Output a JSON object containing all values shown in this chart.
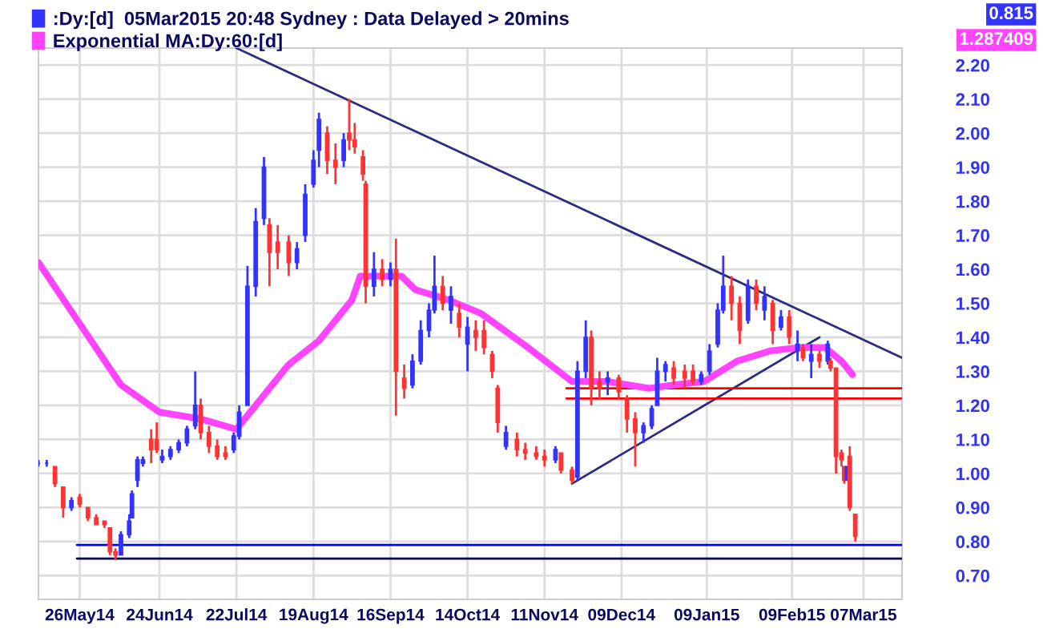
{
  "chart_data": {
    "type": "candlestick",
    "series": [
      {
        "type": "candlestick",
        "name": ":Dy:[d]  05Mar2015 20:48 Sydney : Data Delayed > 20mins",
        "color": "#3333ff",
        "x": [
          "2014-05-11",
          "2014-05-14",
          "2014-05-17",
          "2014-05-20",
          "2014-05-23",
          "2014-05-26",
          "2014-05-29",
          "2014-06-01",
          "2014-06-04",
          "2014-06-06",
          "2014-06-08",
          "2014-06-10",
          "2014-06-13",
          "2014-06-14",
          "2014-06-16",
          "2014-06-18",
          "2014-06-21",
          "2014-06-23",
          "2014-06-25",
          "2014-06-28",
          "2014-07-01",
          "2014-07-04",
          "2014-07-07",
          "2014-07-09",
          "2014-07-12",
          "2014-07-15",
          "2014-07-18",
          "2014-07-21",
          "2014-07-23",
          "2014-07-26",
          "2014-07-29",
          "2014-08-01",
          "2014-08-03",
          "2014-08-06",
          "2014-08-10",
          "2014-08-13",
          "2014-08-16",
          "2014-08-19",
          "2014-08-21",
          "2014-08-24",
          "2014-08-27",
          "2014-08-30",
          "2014-09-01",
          "2014-09-03",
          "2014-09-06",
          "2014-09-07",
          "2014-09-10",
          "2014-09-13",
          "2014-09-16",
          "2014-09-18",
          "2014-09-21",
          "2014-09-24",
          "2014-09-27",
          "2014-09-30",
          "2014-10-02",
          "2014-10-05",
          "2014-10-08",
          "2014-10-11",
          "2014-10-14",
          "2014-10-17",
          "2014-10-20",
          "2014-10-23",
          "2014-10-25",
          "2014-10-28",
          "2014-11-01",
          "2014-11-04",
          "2014-11-08",
          "2014-11-11",
          "2014-11-15",
          "2014-11-17",
          "2014-11-21",
          "2014-11-23",
          "2014-11-26",
          "2014-11-28",
          "2014-12-01",
          "2014-12-04",
          "2014-12-08",
          "2014-12-11",
          "2014-12-14",
          "2014-12-17",
          "2014-12-20",
          "2014-12-22",
          "2014-12-25",
          "2014-12-28",
          "2015-01-01",
          "2015-01-04",
          "2015-01-07",
          "2015-01-10",
          "2015-01-13",
          "2015-01-15",
          "2015-01-18",
          "2015-01-21",
          "2015-01-24",
          "2015-01-27",
          "2015-01-30",
          "2015-02-02",
          "2015-02-05",
          "2015-02-08",
          "2015-02-11",
          "2015-02-13",
          "2015-02-16",
          "2015-02-19",
          "2015-02-22",
          "2015-02-23",
          "2015-02-25",
          "2015-02-27",
          "2015-02-28",
          "2015-03-01",
          "2015-03-02",
          "2015-03-04"
        ],
        "ohlc": [
          [
            1.03,
            1.04,
            1.02,
            1.03
          ],
          [
            1.03,
            1.04,
            1.02,
            1.03
          ],
          [
            1.02,
            1.02,
            0.96,
            0.97
          ],
          [
            0.96,
            0.96,
            0.87,
            0.9
          ],
          [
            0.9,
            0.93,
            0.89,
            0.92
          ],
          [
            0.93,
            0.94,
            0.9,
            0.91
          ],
          [
            0.9,
            0.9,
            0.86,
            0.87
          ],
          [
            0.87,
            0.88,
            0.85,
            0.85
          ],
          [
            0.86,
            0.86,
            0.84,
            0.85
          ],
          [
            0.84,
            0.84,
            0.76,
            0.77
          ],
          [
            0.77,
            0.78,
            0.745,
            0.76
          ],
          [
            0.76,
            0.83,
            0.76,
            0.82
          ],
          [
            0.82,
            0.88,
            0.81,
            0.86
          ],
          [
            0.87,
            0.95,
            0.87,
            0.94
          ],
          [
            0.98,
            1.05,
            0.96,
            1.04
          ],
          [
            1.03,
            1.05,
            1.02,
            1.04
          ],
          [
            1.1,
            1.13,
            1.03,
            1.07
          ],
          [
            1.1,
            1.15,
            1.06,
            1.07
          ],
          [
            1.04,
            1.07,
            1.03,
            1.05
          ],
          [
            1.05,
            1.08,
            1.04,
            1.07
          ],
          [
            1.07,
            1.1,
            1.06,
            1.09
          ],
          [
            1.09,
            1.14,
            1.08,
            1.13
          ],
          [
            1.14,
            1.3,
            1.13,
            1.2
          ],
          [
            1.2,
            1.22,
            1.1,
            1.12
          ],
          [
            1.12,
            1.14,
            1.06,
            1.08
          ],
          [
            1.08,
            1.1,
            1.04,
            1.05
          ],
          [
            1.06,
            1.08,
            1.04,
            1.05
          ],
          [
            1.07,
            1.12,
            1.06,
            1.11
          ],
          [
            1.11,
            1.2,
            1.1,
            1.18
          ],
          [
            1.2,
            1.61,
            1.2,
            1.55
          ],
          [
            1.55,
            1.78,
            1.52,
            1.74
          ],
          [
            1.75,
            1.93,
            1.73,
            1.9
          ],
          [
            1.73,
            1.75,
            1.55,
            1.65
          ],
          [
            1.68,
            1.73,
            1.6,
            1.65
          ],
          [
            1.68,
            1.7,
            1.58,
            1.62
          ],
          [
            1.62,
            1.68,
            1.6,
            1.66
          ],
          [
            1.7,
            1.85,
            1.68,
            1.82
          ],
          [
            1.85,
            1.95,
            1.84,
            1.92
          ],
          [
            1.95,
            2.06,
            1.9,
            2.04
          ],
          [
            2.0,
            2.02,
            1.88,
            1.92
          ],
          [
            1.92,
            1.97,
            1.85,
            1.9
          ],
          [
            1.92,
            2.0,
            1.9,
            1.98
          ],
          [
            2.0,
            2.1,
            1.95,
            1.98
          ],
          [
            1.98,
            2.03,
            1.94,
            1.96
          ],
          [
            1.93,
            1.95,
            1.86,
            1.88
          ],
          [
            1.85,
            1.86,
            1.5,
            1.55
          ],
          [
            1.55,
            1.65,
            1.52,
            1.6
          ],
          [
            1.6,
            1.63,
            1.55,
            1.57
          ],
          [
            1.57,
            1.62,
            1.55,
            1.6
          ],
          [
            1.6,
            1.69,
            1.17,
            1.3
          ],
          [
            1.28,
            1.32,
            1.22,
            1.25
          ],
          [
            1.26,
            1.35,
            1.25,
            1.33
          ],
          [
            1.33,
            1.45,
            1.32,
            1.42
          ],
          [
            1.42,
            1.5,
            1.4,
            1.48
          ],
          [
            1.48,
            1.64,
            1.47,
            1.55
          ],
          [
            1.55,
            1.58,
            1.48,
            1.5
          ],
          [
            1.48,
            1.55,
            1.44,
            1.52
          ],
          [
            1.47,
            1.5,
            1.4,
            1.43
          ],
          [
            1.38,
            1.46,
            1.3,
            1.43
          ],
          [
            1.42,
            1.45,
            1.36,
            1.4
          ],
          [
            1.42,
            1.45,
            1.35,
            1.37
          ],
          [
            1.35,
            1.36,
            1.28,
            1.3
          ],
          [
            1.25,
            1.26,
            1.12,
            1.15
          ],
          [
            1.08,
            1.14,
            1.07,
            1.12
          ],
          [
            1.1,
            1.12,
            1.05,
            1.07
          ],
          [
            1.07,
            1.09,
            1.04,
            1.06
          ],
          [
            1.06,
            1.08,
            1.04,
            1.05
          ],
          [
            1.05,
            1.07,
            1.02,
            1.04
          ],
          [
            1.04,
            1.08,
            1.03,
            1.07
          ],
          [
            1.06,
            1.06,
            1.0,
            1.01
          ],
          [
            1.01,
            1.02,
            0.97,
            0.98
          ],
          [
            0.99,
            1.33,
            0.98,
            1.3
          ],
          [
            1.3,
            1.45,
            1.28,
            1.4
          ],
          [
            1.4,
            1.42,
            1.2,
            1.25
          ],
          [
            1.27,
            1.3,
            1.22,
            1.25
          ],
          [
            1.27,
            1.3,
            1.23,
            1.28
          ],
          [
            1.28,
            1.29,
            1.22,
            1.24
          ],
          [
            1.22,
            1.23,
            1.12,
            1.16
          ],
          [
            1.16,
            1.18,
            1.02,
            1.12
          ],
          [
            1.12,
            1.15,
            1.09,
            1.14
          ],
          [
            1.14,
            1.2,
            1.13,
            1.19
          ],
          [
            1.2,
            1.34,
            1.2,
            1.3
          ],
          [
            1.3,
            1.33,
            1.27,
            1.32
          ],
          [
            1.31,
            1.33,
            1.26,
            1.28
          ],
          [
            1.3,
            1.32,
            1.25,
            1.28
          ],
          [
            1.3,
            1.32,
            1.26,
            1.27
          ],
          [
            1.27,
            1.3,
            1.26,
            1.29
          ],
          [
            1.3,
            1.38,
            1.29,
            1.36
          ],
          [
            1.38,
            1.5,
            1.37,
            1.48
          ],
          [
            1.48,
            1.64,
            1.47,
            1.55
          ],
          [
            1.55,
            1.58,
            1.45,
            1.5
          ],
          [
            1.5,
            1.52,
            1.38,
            1.42
          ],
          [
            1.45,
            1.57,
            1.44,
            1.55
          ],
          [
            1.55,
            1.57,
            1.48,
            1.5
          ],
          [
            1.48,
            1.55,
            1.45,
            1.52
          ],
          [
            1.5,
            1.51,
            1.38,
            1.42
          ],
          [
            1.43,
            1.48,
            1.42,
            1.46
          ],
          [
            1.46,
            1.48,
            1.38,
            1.4
          ],
          [
            1.36,
            1.42,
            1.33,
            1.38
          ],
          [
            1.37,
            1.38,
            1.33,
            1.34
          ],
          [
            1.33,
            1.38,
            1.28,
            1.35
          ],
          [
            1.35,
            1.36,
            1.31,
            1.33
          ],
          [
            1.33,
            1.39,
            1.32,
            1.38
          ],
          [
            1.33,
            1.34,
            1.3,
            1.31
          ],
          [
            1.31,
            1.31,
            1.0,
            1.05
          ],
          [
            1.06,
            1.07,
            1.02,
            1.04
          ],
          [
            1.02,
            1.02,
            0.97,
            0.98
          ],
          [
            0.98,
            1.02,
            0.98,
            1.02
          ],
          [
            1.05,
            1.08,
            0.89,
            0.9
          ],
          [
            0.88,
            0.88,
            0.8,
            0.815
          ]
        ],
        "colors": [
          "#3333ff",
          "#3333ff",
          "#ff3333",
          "#ff3333",
          "#3333ff",
          "#ff3333",
          "#ff3333",
          "#ff3333",
          "#ff3333",
          "#ff3333",
          "#ff3333",
          "#3333ff",
          "#3333ff",
          "#3333ff",
          "#3333ff",
          "#3333ff",
          "#ff3333",
          "#ff3333",
          "#3333ff",
          "#3333ff",
          "#3333ff",
          "#3333ff",
          "#3333ff",
          "#ff3333",
          "#ff3333",
          "#ff3333",
          "#ff3333",
          "#3333ff",
          "#3333ff",
          "#3333ff",
          "#3333ff",
          "#3333ff",
          "#ff3333",
          "#ff3333",
          "#ff3333",
          "#3333ff",
          "#3333ff",
          "#3333ff",
          "#3333ff",
          "#ff3333",
          "#ff3333",
          "#3333ff",
          "#ff3333",
          "#ff3333",
          "#ff3333",
          "#ff3333",
          "#3333ff",
          "#ff3333",
          "#3333ff",
          "#ff3333",
          "#ff3333",
          "#3333ff",
          "#3333ff",
          "#3333ff",
          "#3333ff",
          "#ff3333",
          "#3333ff",
          "#ff3333",
          "#3333ff",
          "#ff3333",
          "#ff3333",
          "#ff3333",
          "#ff3333",
          "#3333ff",
          "#ff3333",
          "#ff3333",
          "#ff3333",
          "#ff3333",
          "#3333ff",
          "#ff3333",
          "#ff3333",
          "#3333ff",
          "#3333ff",
          "#ff3333",
          "#ff3333",
          "#3333ff",
          "#ff3333",
          "#ff3333",
          "#ff3333",
          "#3333ff",
          "#3333ff",
          "#3333ff",
          "#3333ff",
          "#ff3333",
          "#ff3333",
          "#ff3333",
          "#3333ff",
          "#3333ff",
          "#3333ff",
          "#3333ff",
          "#ff3333",
          "#ff3333",
          "#3333ff",
          "#ff3333",
          "#3333ff",
          "#ff3333",
          "#3333ff",
          "#ff3333",
          "#3333ff",
          "#ff3333",
          "#3333ff",
          "#ff3333",
          "#3333ff",
          "#ff3333",
          "#ff3333",
          "#ff3333",
          "#ff3333",
          "#3333ff",
          "#ff3333",
          "#ff3333"
        ]
      },
      {
        "type": "line",
        "name": "Exponential MA:Dy:60:[d]",
        "color": "#ff44ff",
        "x": [
          "2014-05-11",
          "2014-05-26",
          "2014-06-10",
          "2014-06-24",
          "2014-07-09",
          "2014-07-22",
          "2014-07-29",
          "2014-08-10",
          "2014-08-21",
          "2014-09-02",
          "2014-09-05",
          "2014-09-14",
          "2014-09-20",
          "2014-09-25",
          "2014-10-07",
          "2014-10-19",
          "2014-11-05",
          "2014-11-21",
          "2014-12-04",
          "2014-12-19",
          "2014-12-28",
          "2015-01-08",
          "2015-01-20",
          "2015-02-01",
          "2015-02-12",
          "2015-02-21",
          "2015-02-27",
          "2015-03-03"
        ],
        "values": [
          1.62,
          1.44,
          1.26,
          1.18,
          1.16,
          1.13,
          1.2,
          1.32,
          1.39,
          1.51,
          1.58,
          1.58,
          1.58,
          1.54,
          1.51,
          1.47,
          1.37,
          1.27,
          1.27,
          1.25,
          1.26,
          1.27,
          1.33,
          1.36,
          1.37,
          1.37,
          1.33,
          1.29
        ]
      },
      {
        "type": "line",
        "color": "#2b2b80",
        "x": [
          "2014-07-22",
          "2015-03-21"
        ],
        "values": [
          2.25,
          1.34
        ]
      },
      {
        "type": "line",
        "color": "#2b2b80",
        "x": [
          "2014-11-21",
          "2015-02-19"
        ],
        "values": [
          0.97,
          1.4
        ]
      },
      {
        "type": "line",
        "color": "#ff0000",
        "x": [
          "2014-11-19",
          "2015-03-21"
        ],
        "values": [
          1.25,
          1.25
        ]
      },
      {
        "type": "line",
        "color": "#ff0000",
        "x": [
          "2014-11-19",
          "2015-03-21"
        ],
        "values": [
          1.22,
          1.22
        ]
      },
      {
        "type": "line",
        "color": "#0000ff",
        "x": [
          "2014-05-25",
          "2015-03-21"
        ],
        "values": [
          0.79,
          0.79
        ]
      },
      {
        "type": "line",
        "color": "#000050",
        "x": [
          "2014-05-25",
          "2015-03-21"
        ],
        "values": [
          0.75,
          0.75
        ]
      }
    ],
    "xlim": [
      "2014-05-11",
      "2015-03-21"
    ],
    "xticks": [
      {
        "value": "2014-05-26",
        "label": "26May14"
      },
      {
        "value": "2014-06-24",
        "label": "24Jun14"
      },
      {
        "value": "2014-07-22",
        "label": "22Jul14"
      },
      {
        "value": "2014-08-19",
        "label": "19Aug14"
      },
      {
        "value": "2014-09-16",
        "label": "16Sep14"
      },
      {
        "value": "2014-10-14",
        "label": "14Oct14"
      },
      {
        "value": "2014-11-11",
        "label": "11Nov14"
      },
      {
        "value": "2014-12-09",
        "label": "09Dec14"
      },
      {
        "value": "2015-01-09",
        "label": "09Jan15"
      },
      {
        "value": "2015-02-09",
        "label": "09Feb15"
      },
      {
        "value": "2015-03-07",
        "label": "07Mar15"
      }
    ],
    "ylim": [
      0.63,
      2.25
    ],
    "yticks": [
      {
        "value": 0.7,
        "label": "0.70"
      },
      {
        "value": 0.8,
        "label": "0.80"
      },
      {
        "value": 0.9,
        "label": "0.90"
      },
      {
        "value": 1.0,
        "label": "1.00"
      },
      {
        "value": 1.1,
        "label": "1.10"
      },
      {
        "value": 1.2,
        "label": "1.20"
      },
      {
        "value": 1.3,
        "label": "1.30"
      },
      {
        "value": 1.4,
        "label": "1.40"
      },
      {
        "value": 1.5,
        "label": "1.50"
      },
      {
        "value": 1.6,
        "label": "1.60"
      },
      {
        "value": 1.7,
        "label": "1.70"
      },
      {
        "value": 1.8,
        "label": "1.80"
      },
      {
        "value": 1.9,
        "label": "1.90"
      },
      {
        "value": 2.0,
        "label": "2.00"
      },
      {
        "value": 2.1,
        "label": "2.10"
      },
      {
        "value": 2.2,
        "label": "2.20"
      }
    ],
    "annotations": [
      "0.815",
      "1.287409"
    ],
    "grid": true,
    "legend": "top left",
    "marker": "none",
    "line_style": "solid"
  }
}
